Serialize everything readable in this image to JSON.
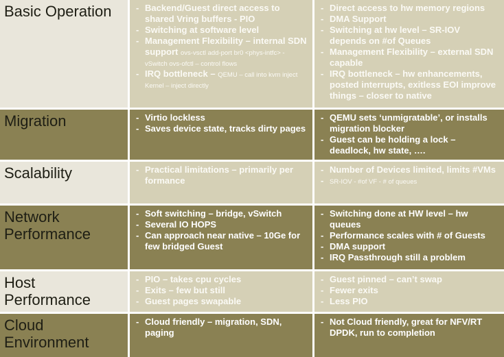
{
  "table": {
    "rows": [
      {
        "label": "Basic Operation",
        "light": true,
        "col1": [
          {
            "text": "Backend/Guest direct access to shared Vring buffers - PIO"
          },
          {
            "text": "Switching at software level"
          },
          {
            "text": "Management Flexibility – internal SDN support",
            "note": "ovs-vsctl add-port br0 <phys-intfc> - vSwitch ovs-ofctl – control flows"
          },
          {
            "text": "IRQ bottleneck –",
            "note": "QEMU – call into kvm inject  Kernel – inject directly"
          }
        ],
        "col2": [
          {
            "text": "Direct access to hw memory regions"
          },
          {
            "text": "DMA Support"
          },
          {
            "text": "Switching at hw level – SR-IOV depends on #of Queues"
          },
          {
            "text": "Management Flexibility – external SDN capable"
          },
          {
            "text": "IRQ bottleneck –  hw enhancements, posted interrupts, exitless EOI improve things – closer to native"
          }
        ]
      },
      {
        "label": "Migration",
        "light": false,
        "col1": [
          {
            "text": "Virtio lockless"
          },
          {
            "text": "Saves device state, tracks dirty pages"
          }
        ],
        "col2": [
          {
            "text": "QEMU sets ‘unmigratable’, or installs migration blocker"
          },
          {
            "text": "Guest can be holding a lock – deadlock, hw state, …."
          }
        ]
      },
      {
        "label": "Scalability",
        "light": true,
        "col1": [
          {
            "text": "Practical limitations – primarily per formance"
          }
        ],
        "col2": [
          {
            "text": "Number of Devices limited, limits #VMs"
          },
          {
            "note": "SR-IOV - #of VF - # of queues"
          }
        ]
      },
      {
        "label": "Network Performance",
        "light": false,
        "col1": [
          {
            "text": "Soft switching – bridge, vSwitch"
          },
          {
            "text": "Several IO HOPS"
          },
          {
            "text": "Can approach near native – 10Ge for few bridged Guest"
          }
        ],
        "col2": [
          {
            "text": "Switching done at HW level – hw queues"
          },
          {
            "text": "Performance scales with # of Guests"
          },
          {
            "text": "DMA support"
          },
          {
            "text": "IRQ Passthrough still a problem"
          }
        ]
      },
      {
        "label": "Host Performance",
        "light": true,
        "col1": [
          {
            "text": "PIO – takes cpu cycles"
          },
          {
            "text": "Exits – few but still"
          },
          {
            "text": "Guest pages swapable"
          }
        ],
        "col2": [
          {
            "text": "Guest pinned – can’t swap"
          },
          {
            "text": "Fewer exits"
          },
          {
            "text": "Less PIO"
          }
        ]
      },
      {
        "label": "Cloud Environment",
        "light": false,
        "col1": [
          {
            "text": "Cloud friendly – migration, SDN, paging"
          }
        ],
        "col2": [
          {
            "text": "Not Cloud friendly, great for NFV/RT DPDK, run to completion"
          }
        ]
      }
    ]
  }
}
